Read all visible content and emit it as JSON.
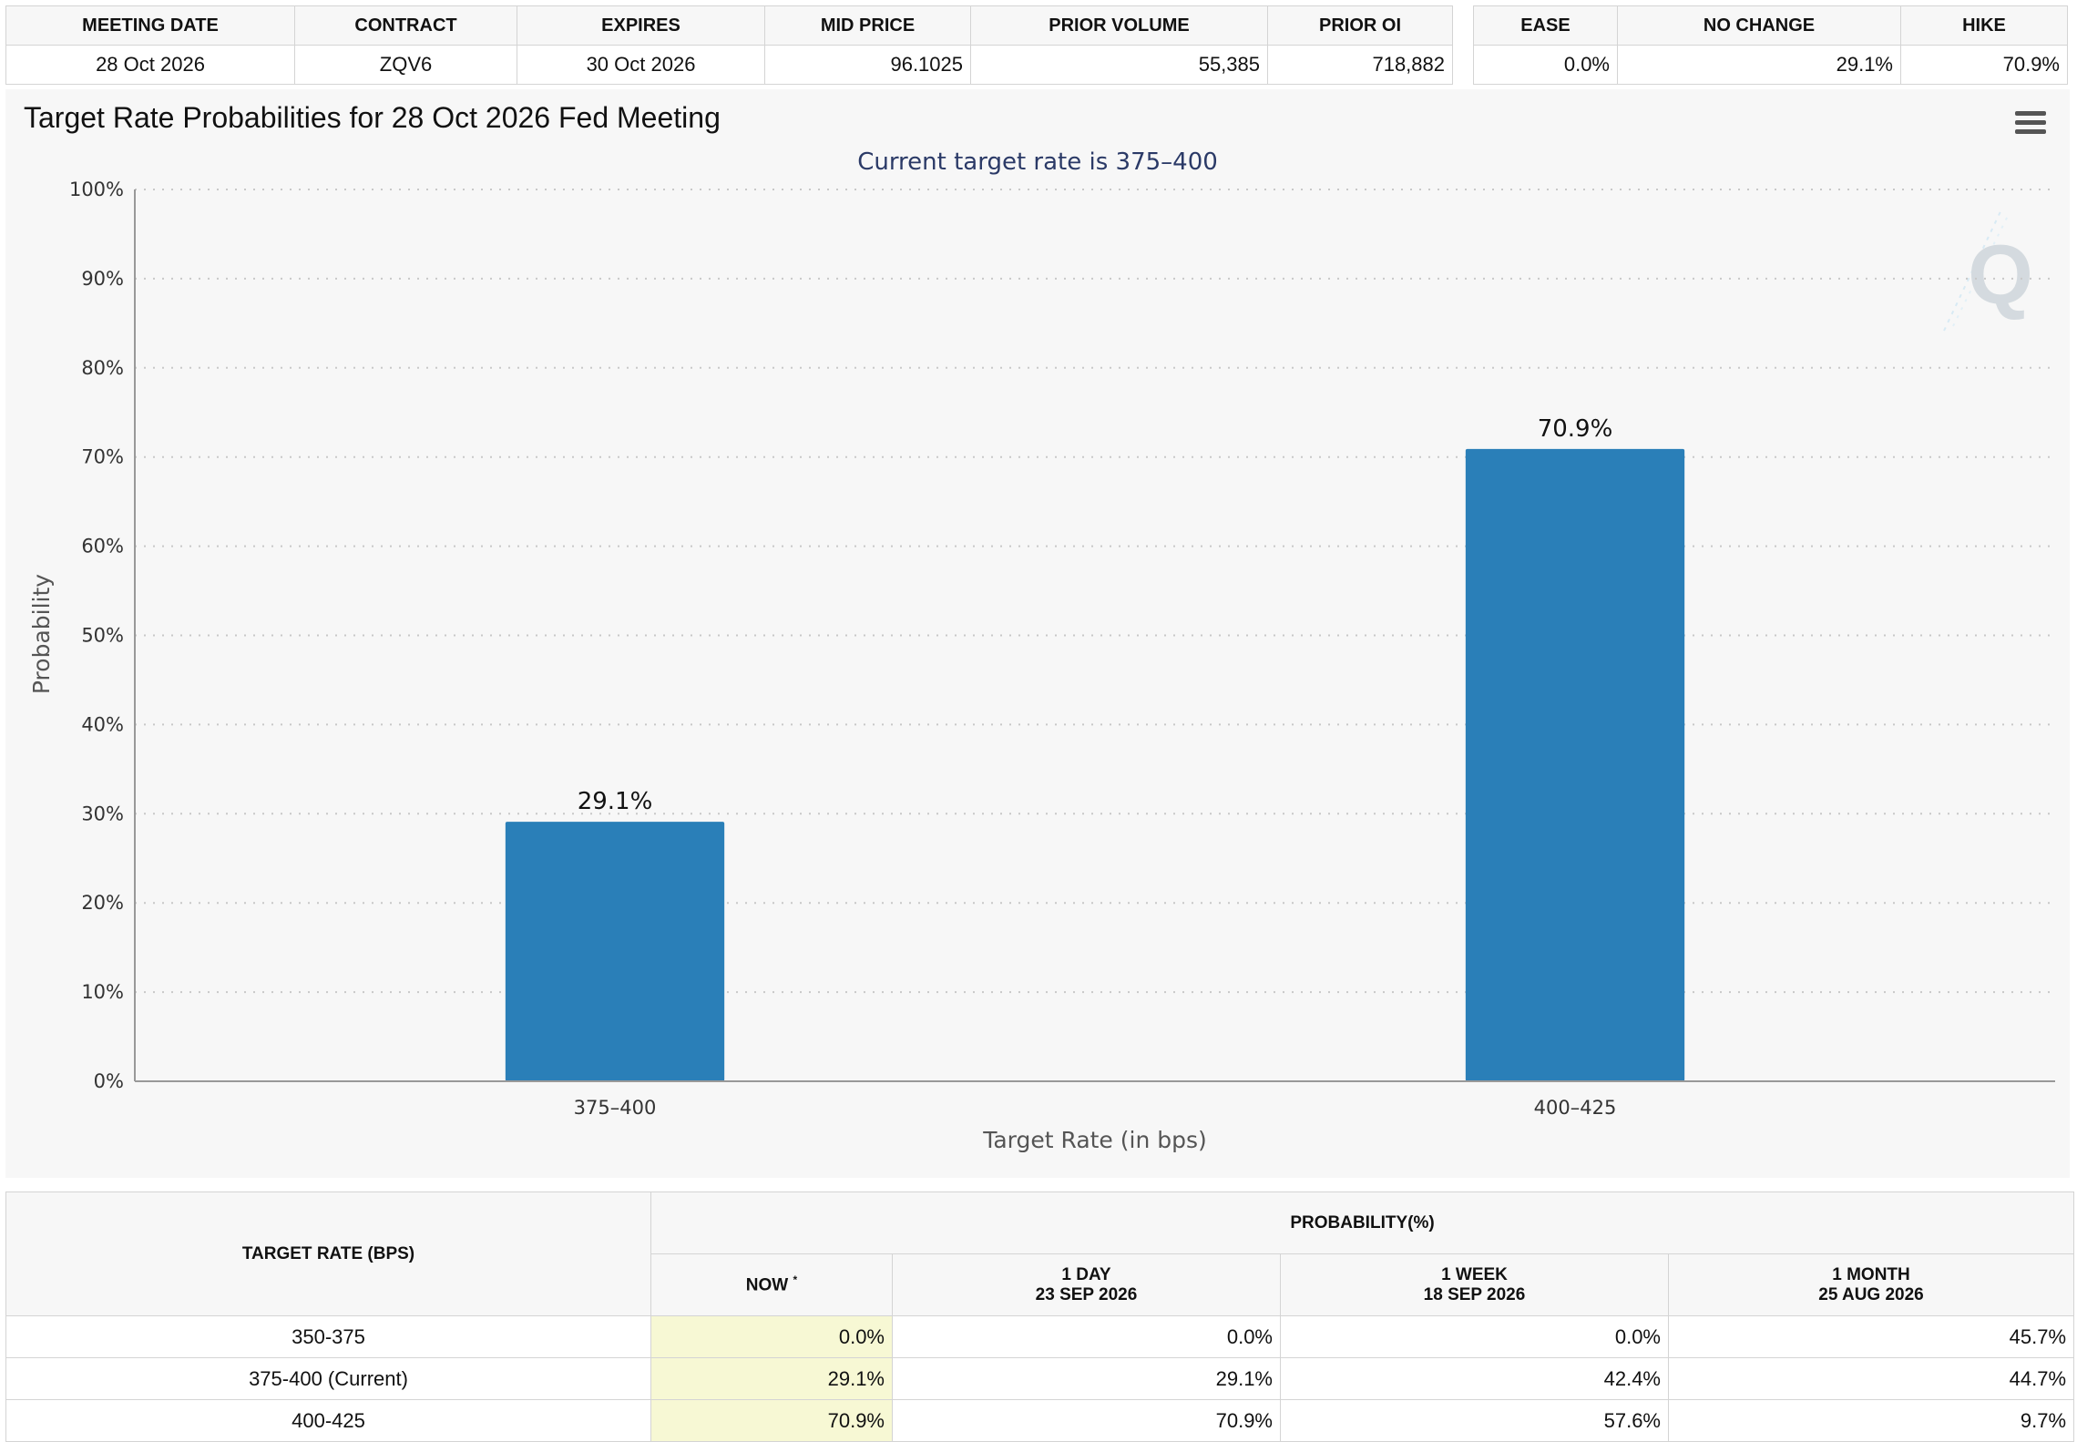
{
  "meeting_table": {
    "headers": [
      "MEETING DATE",
      "CONTRACT",
      "EXPIRES",
      "MID PRICE",
      "PRIOR VOLUME",
      "PRIOR OI"
    ],
    "row": [
      "28 Oct 2026",
      "ZQV6",
      "30 Oct 2026",
      "96.1025",
      "55,385",
      "718,882"
    ]
  },
  "summary_table": {
    "headers": [
      "EASE",
      "NO CHANGE",
      "HIKE"
    ],
    "row": [
      "0.0%",
      "29.1%",
      "70.9%"
    ]
  },
  "chart": {
    "menu_icon": "hamburger-menu-icon",
    "watermark_icon": "q-logo-watermark",
    "colors": {
      "bar": "#2a7fb8",
      "grid": "#c8c8c8",
      "background": "#f7f7f7",
      "subtitle": "#2b3a67"
    }
  },
  "chart_data": {
    "type": "bar",
    "title": "Target Rate Probabilities for 28 Oct 2026 Fed Meeting",
    "subtitle": "Current target rate is 375–400",
    "xlabel": "Target Rate (in bps)",
    "ylabel": "Probability",
    "categories": [
      "375–400",
      "400–425"
    ],
    "values": [
      29.1,
      70.9
    ],
    "data_labels": [
      "29.1%",
      "70.9%"
    ],
    "ylim": [
      0,
      100
    ],
    "yticks": [
      "0%",
      "10%",
      "20%",
      "30%",
      "40%",
      "50%",
      "60%",
      "70%",
      "80%",
      "90%",
      "100%"
    ],
    "grid": true,
    "legend": "none"
  },
  "probability_table": {
    "target_rate_header": "TARGET RATE (BPS)",
    "probability_header": "PROBABILITY(%)",
    "now_header": "NOW",
    "now_marker": "*",
    "col_1day_label": "1 DAY",
    "col_1day_date": "23 SEP 2026",
    "col_1week_label": "1 WEEK",
    "col_1week_date": "18 SEP 2026",
    "col_1month_label": "1 MONTH",
    "col_1month_date": "25 AUG 2026",
    "rows": [
      {
        "rate": "350-375",
        "now": "0.0%",
        "day": "0.0%",
        "week": "0.0%",
        "month": "45.7%"
      },
      {
        "rate": "375-400 (Current)",
        "now": "29.1%",
        "day": "29.1%",
        "week": "42.4%",
        "month": "44.7%"
      },
      {
        "rate": "400-425",
        "now": "70.9%",
        "day": "70.9%",
        "week": "57.6%",
        "month": "9.7%"
      }
    ]
  }
}
